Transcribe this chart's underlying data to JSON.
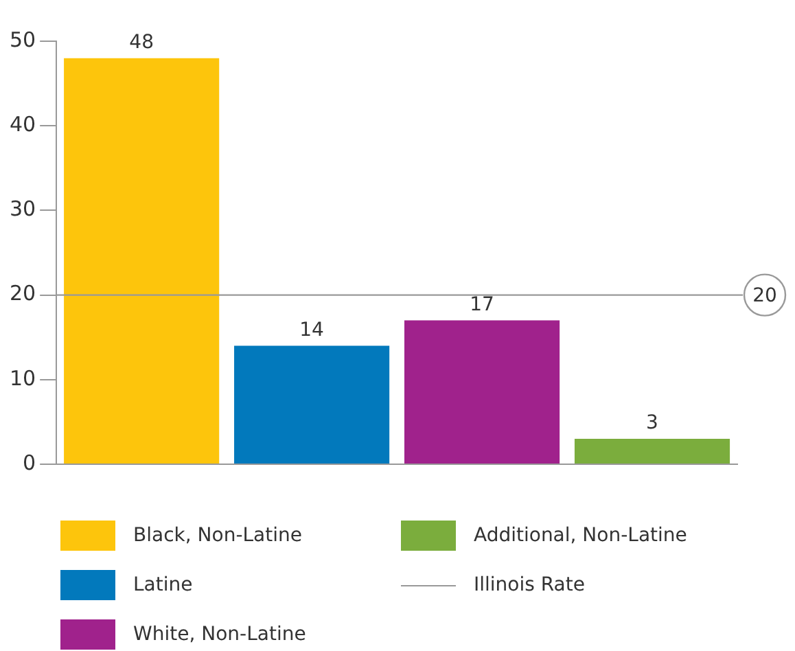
{
  "chart_data": {
    "type": "bar",
    "stacked": true,
    "categories": [
      null,
      null,
      null,
      null
    ],
    "series": [
      {
        "name": "Black, Non-Latine",
        "color": "#fdc50c",
        "values": [
          48,
          null,
          null,
          null
        ]
      },
      {
        "name": "Latine",
        "color": "#0279bc",
        "values": [
          null,
          14,
          null,
          null
        ]
      },
      {
        "name": "White, Non-Latine",
        "color": "#a0228c",
        "values": [
          null,
          null,
          17,
          null
        ]
      },
      {
        "name": "Additional, Non-Latine",
        "color": "#7bad3d",
        "values": [
          null,
          null,
          null,
          3
        ]
      }
    ],
    "ylim": [
      0,
      50
    ],
    "yticks": [
      0,
      10,
      20,
      30,
      40,
      50
    ],
    "tick_labels": "y",
    "data_labels": true,
    "grid": false,
    "legend": "bottom",
    "ref_lines": [
      {
        "axis": "y",
        "value": 20,
        "label": "Illinois Rate",
        "color": "#999999"
      }
    ],
    "annotations": [
      {
        "text": "20",
        "y": 20
      }
    ]
  }
}
